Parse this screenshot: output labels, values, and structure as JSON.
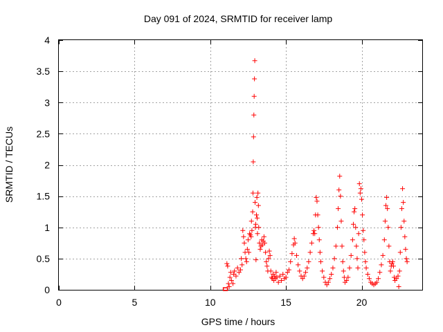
{
  "chart_data": {
    "type": "scatter",
    "title": "Day 091 of 2024, SRMTID for receiver lamp",
    "xlabel": "GPS time / hours",
    "ylabel": "SRMTID / TECUs",
    "xlim": [
      0,
      24
    ],
    "ylim": [
      0,
      4
    ],
    "xticks": [
      0,
      5,
      10,
      15,
      20
    ],
    "xtick_labels": [
      "0",
      "5",
      "10",
      "15",
      "20"
    ],
    "yticks": [
      0,
      0.5,
      1,
      1.5,
      2,
      2.5,
      3,
      3.5,
      4
    ],
    "ytick_labels": [
      "0",
      "0.5",
      "1",
      "1.5",
      "2",
      "2.5",
      "3",
      "3.5",
      "4"
    ],
    "grid": true,
    "marker": "+",
    "series": [
      {
        "name": "SRMTID",
        "color": "#ff0000",
        "points": [
          [
            11.0,
            0.0
          ],
          [
            11.1,
            0.42
          ],
          [
            11.15,
            0.38
          ],
          [
            11.2,
            0.1
          ],
          [
            11.25,
            0.05
          ],
          [
            11.3,
            0.2
          ],
          [
            11.35,
            0.28
          ],
          [
            11.4,
            0.15
          ],
          [
            11.5,
            0.1
          ],
          [
            11.55,
            0.25
          ],
          [
            11.6,
            0.3
          ],
          [
            11.7,
            0.22
          ],
          [
            11.8,
            0.35
          ],
          [
            11.9,
            0.28
          ],
          [
            12.0,
            0.32
          ],
          [
            12.05,
            0.5
          ],
          [
            12.1,
            0.4
          ],
          [
            12.15,
            0.95
          ],
          [
            12.2,
            0.85
          ],
          [
            12.25,
            0.75
          ],
          [
            12.3,
            0.6
          ],
          [
            12.35,
            0.5
          ],
          [
            12.4,
            0.45
          ],
          [
            12.45,
            0.65
          ],
          [
            12.5,
            0.8
          ],
          [
            12.55,
            0.6
          ],
          [
            12.6,
            0.9
          ],
          [
            12.65,
            0.88
          ],
          [
            12.7,
            0.85
          ],
          [
            12.72,
            1.1
          ],
          [
            12.75,
            0.95
          ],
          [
            12.8,
            1.25
          ],
          [
            12.82,
            1.55
          ],
          [
            12.84,
            2.05
          ],
          [
            12.86,
            2.45
          ],
          [
            12.88,
            2.8
          ],
          [
            12.9,
            3.1
          ],
          [
            12.92,
            3.38
          ],
          [
            12.94,
            3.67
          ],
          [
            12.96,
            1.4
          ],
          [
            12.98,
            1.0
          ],
          [
            13.0,
            1.05
          ],
          [
            13.02,
            0.48
          ],
          [
            13.05,
            1.2
          ],
          [
            13.08,
            1.48
          ],
          [
            13.1,
            1.15
          ],
          [
            13.12,
            0.9
          ],
          [
            13.15,
            1.55
          ],
          [
            13.18,
            1.35
          ],
          [
            13.2,
            1.0
          ],
          [
            13.25,
            0.75
          ],
          [
            13.3,
            0.65
          ],
          [
            13.35,
            0.7
          ],
          [
            13.4,
            0.8
          ],
          [
            13.45,
            0.72
          ],
          [
            13.5,
            0.78
          ],
          [
            13.55,
            0.85
          ],
          [
            13.6,
            0.75
          ],
          [
            13.65,
            0.6
          ],
          [
            13.7,
            0.45
          ],
          [
            13.75,
            0.38
          ],
          [
            13.8,
            0.3
          ],
          [
            13.85,
            0.5
          ],
          [
            13.9,
            0.62
          ],
          [
            13.95,
            0.55
          ],
          [
            14.0,
            0.3
          ],
          [
            14.05,
            0.2
          ],
          [
            14.1,
            0.18
          ],
          [
            14.15,
            0.25
          ],
          [
            14.2,
            0.15
          ],
          [
            14.25,
            0.22
          ],
          [
            14.3,
            0.18
          ],
          [
            14.35,
            0.28
          ],
          [
            14.4,
            0.2
          ],
          [
            14.5,
            0.12
          ],
          [
            14.6,
            0.22
          ],
          [
            14.7,
            0.15
          ],
          [
            14.8,
            0.25
          ],
          [
            14.9,
            0.18
          ],
          [
            15.0,
            0.2
          ],
          [
            15.1,
            0.28
          ],
          [
            15.2,
            0.32
          ],
          [
            15.3,
            0.45
          ],
          [
            15.4,
            0.58
          ],
          [
            15.5,
            0.72
          ],
          [
            15.55,
            0.82
          ],
          [
            15.6,
            0.75
          ],
          [
            15.7,
            0.55
          ],
          [
            15.8,
            0.4
          ],
          [
            15.9,
            0.3
          ],
          [
            16.0,
            0.22
          ],
          [
            16.1,
            0.18
          ],
          [
            16.2,
            0.22
          ],
          [
            16.3,
            0.28
          ],
          [
            16.4,
            0.35
          ],
          [
            16.5,
            0.45
          ],
          [
            16.6,
            0.6
          ],
          [
            16.7,
            0.75
          ],
          [
            16.8,
            0.9
          ],
          [
            16.85,
            0.95
          ],
          [
            16.9,
            0.9
          ],
          [
            16.95,
            1.2
          ],
          [
            17.0,
            1.48
          ],
          [
            17.05,
            1.42
          ],
          [
            17.1,
            1.2
          ],
          [
            17.15,
            1.0
          ],
          [
            17.2,
            0.8
          ],
          [
            17.25,
            0.6
          ],
          [
            17.3,
            0.45
          ],
          [
            17.4,
            0.3
          ],
          [
            17.5,
            0.2
          ],
          [
            17.6,
            0.12
          ],
          [
            17.7,
            0.08
          ],
          [
            17.8,
            0.12
          ],
          [
            17.9,
            0.18
          ],
          [
            18.0,
            0.25
          ],
          [
            18.1,
            0.35
          ],
          [
            18.2,
            0.5
          ],
          [
            18.3,
            0.7
          ],
          [
            18.4,
            1.0
          ],
          [
            18.45,
            1.3
          ],
          [
            18.5,
            1.6
          ],
          [
            18.55,
            1.82
          ],
          [
            18.6,
            1.5
          ],
          [
            18.65,
            1.1
          ],
          [
            18.7,
            0.7
          ],
          [
            18.75,
            0.45
          ],
          [
            18.8,
            0.3
          ],
          [
            18.85,
            0.2
          ],
          [
            18.9,
            0.12
          ],
          [
            19.0,
            0.15
          ],
          [
            19.1,
            0.2
          ],
          [
            19.2,
            0.35
          ],
          [
            19.3,
            0.55
          ],
          [
            19.4,
            0.8
          ],
          [
            19.45,
            1.05
          ],
          [
            19.5,
            1.25
          ],
          [
            19.55,
            1.3
          ],
          [
            19.6,
            1.0
          ],
          [
            19.65,
            0.7
          ],
          [
            19.7,
            0.5
          ],
          [
            19.75,
            0.35
          ],
          [
            19.8,
            0.9
          ],
          [
            19.85,
            1.7
          ],
          [
            19.9,
            1.55
          ],
          [
            19.95,
            1.62
          ],
          [
            20.0,
            1.45
          ],
          [
            20.05,
            1.2
          ],
          [
            20.1,
            0.95
          ],
          [
            20.15,
            0.8
          ],
          [
            20.2,
            0.6
          ],
          [
            20.25,
            0.45
          ],
          [
            20.3,
            0.35
          ],
          [
            20.4,
            0.25
          ],
          [
            20.5,
            0.18
          ],
          [
            20.6,
            0.12
          ],
          [
            20.7,
            0.1
          ],
          [
            20.8,
            0.08
          ],
          [
            20.9,
            0.1
          ],
          [
            21.0,
            0.12
          ],
          [
            21.1,
            0.18
          ],
          [
            21.2,
            0.28
          ],
          [
            21.3,
            0.4
          ],
          [
            21.4,
            0.55
          ],
          [
            21.5,
            0.8
          ],
          [
            21.55,
            1.1
          ],
          [
            21.6,
            1.35
          ],
          [
            21.65,
            1.48
          ],
          [
            21.7,
            1.3
          ],
          [
            21.75,
            1.0
          ],
          [
            21.8,
            0.7
          ],
          [
            21.85,
            0.45
          ],
          [
            21.9,
            0.3
          ],
          [
            21.95,
            0.38
          ],
          [
            22.0,
            0.42
          ],
          [
            22.05,
            0.45
          ],
          [
            22.1,
            0.38
          ],
          [
            22.15,
            0.2
          ],
          [
            22.2,
            0.15
          ],
          [
            22.3,
            0.18
          ],
          [
            22.4,
            0.22
          ],
          [
            22.45,
            0.05
          ],
          [
            22.5,
            0.3
          ],
          [
            22.55,
            0.6
          ],
          [
            22.6,
            1.0
          ],
          [
            22.65,
            1.3
          ],
          [
            22.7,
            1.62
          ],
          [
            22.75,
            1.4
          ],
          [
            22.8,
            1.1
          ],
          [
            22.85,
            0.85
          ],
          [
            22.9,
            0.65
          ],
          [
            22.95,
            0.5
          ],
          [
            23.0,
            0.45
          ]
        ]
      }
    ]
  }
}
